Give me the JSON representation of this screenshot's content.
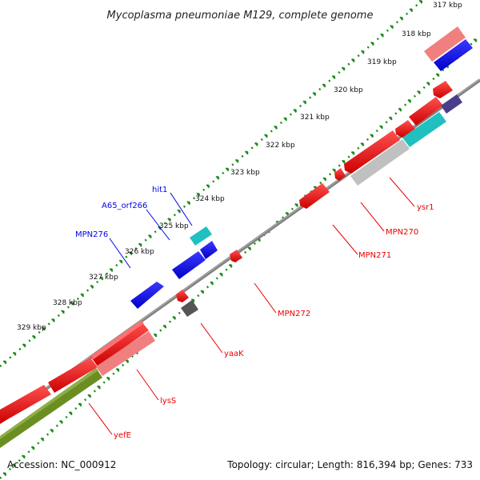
{
  "title": "Mycoplasma pneumoniae M129, complete genome",
  "footer": {
    "accession": "Accession: NC_000912",
    "summary": "Topology: circular; Length: 816,394 bp; Genes: 733"
  },
  "ruler": {
    "ticks": [
      {
        "label": "317 kbp",
        "kbp": 317
      },
      {
        "label": "318 kbp",
        "kbp": 318
      },
      {
        "label": "319 kbp",
        "kbp": 319
      },
      {
        "label": "320 kbp",
        "kbp": 320
      },
      {
        "label": "321 kbp",
        "kbp": 321
      },
      {
        "label": "322 kbp",
        "kbp": 322
      },
      {
        "label": "323 kbp",
        "kbp": 323
      },
      {
        "label": "324 kbp",
        "kbp": 324
      },
      {
        "label": "325 kbp",
        "kbp": 325
      },
      {
        "label": "326 kbp",
        "kbp": 326
      },
      {
        "label": "327 kbp",
        "kbp": 327
      },
      {
        "label": "328 kbp",
        "kbp": 328
      },
      {
        "label": "329 kbp",
        "kbp": 329
      }
    ]
  },
  "colors": {
    "backbone": "#808080",
    "tick_mark": "#1a8a1a",
    "forward_gene": "#0000ee",
    "reverse_gene": "#ee0000",
    "light_red": "#f08080",
    "teal": "#20c0c0",
    "gray_feature": "#c0c0c0",
    "dark_gray": "#555555",
    "olive": "#6b8e23",
    "purple": "#4a3f8a"
  },
  "labels": {
    "forward": [
      {
        "text": "hit1"
      },
      {
        "text": "A65_orf266"
      },
      {
        "text": "MPN276"
      }
    ],
    "reverse": [
      {
        "text": "ysr1"
      },
      {
        "text": "MPN270"
      },
      {
        "text": "MPN271"
      },
      {
        "text": "MPN272"
      },
      {
        "text": "yaaK"
      },
      {
        "text": "lysS"
      },
      {
        "text": "yefE"
      }
    ]
  }
}
